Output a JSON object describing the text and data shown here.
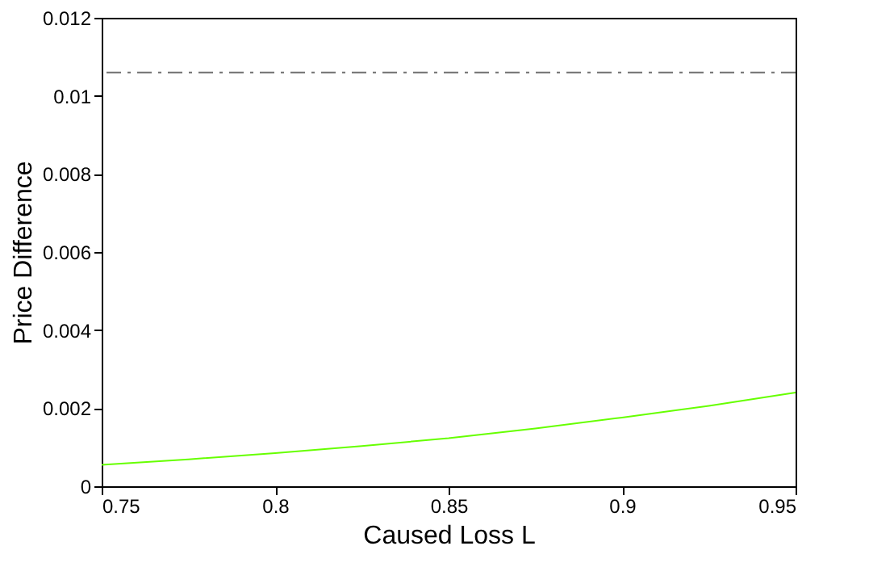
{
  "chart_data": {
    "type": "line",
    "xlabel": "Caused Loss L",
    "ylabel": "Price Difference",
    "x": [
      0.75,
      0.775,
      0.8,
      0.825,
      0.85,
      0.875,
      0.9,
      0.925,
      0.95
    ],
    "series": [
      {
        "color": "#66ff00",
        "values": [
          0.00055,
          0.00069,
          0.00085,
          0.00103,
          0.00123,
          0.00148,
          0.00176,
          0.00206,
          0.0024
        ]
      }
    ],
    "ref_lines": [
      {
        "axis": "y",
        "value": 0.0106,
        "color": "#707070",
        "line_style": "dashed"
      }
    ],
    "xlim": [
      0.75,
      0.95
    ],
    "xticks": [
      0.75,
      0.8,
      0.85,
      0.9,
      0.95
    ],
    "ylim": [
      0,
      0.012
    ],
    "yticks": [
      0,
      0.002,
      0.004,
      0.006,
      0.008,
      0.01,
      0.012
    ],
    "grid": false,
    "marker": "none",
    "line_style": "solid"
  }
}
